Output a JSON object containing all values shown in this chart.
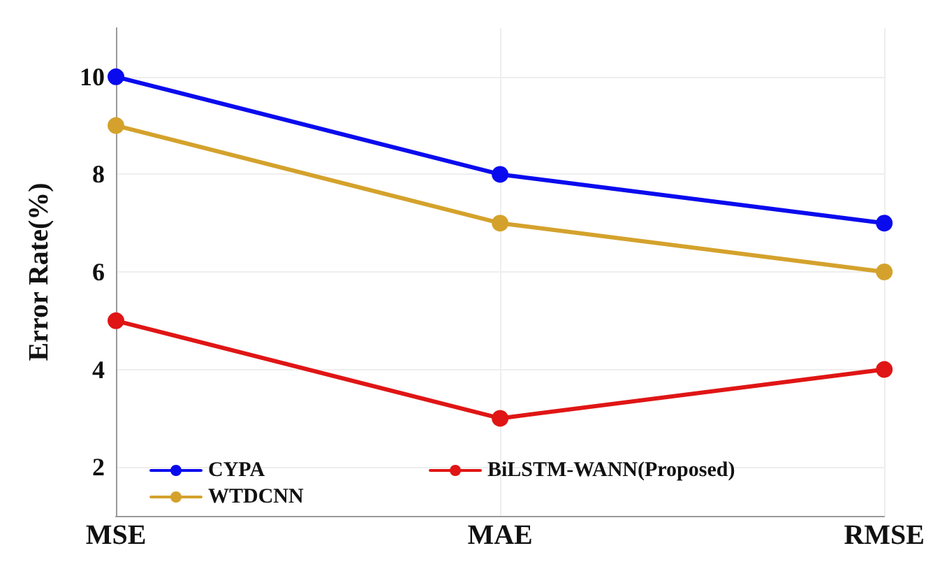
{
  "chart_data": {
    "type": "line",
    "ylabel": "Error Rate(%)",
    "categories": [
      "MSE",
      "MAE",
      "RMSE"
    ],
    "series": [
      {
        "name": "CYPA",
        "color": "#0a0aee",
        "values": [
          10,
          8,
          7
        ]
      },
      {
        "name": "WTDCNN",
        "color": "#d4a22c",
        "values": [
          9,
          7,
          6
        ]
      },
      {
        "name": "BiLSTM-WANN(Proposed)",
        "color": "#e01515",
        "values": [
          5,
          3,
          4
        ]
      }
    ],
    "ylim": [
      1,
      11
    ],
    "yticks": [
      2,
      4,
      6,
      8,
      10
    ],
    "grid": true,
    "legend": "bottom left",
    "marker": "circle",
    "line_style": "solid"
  }
}
